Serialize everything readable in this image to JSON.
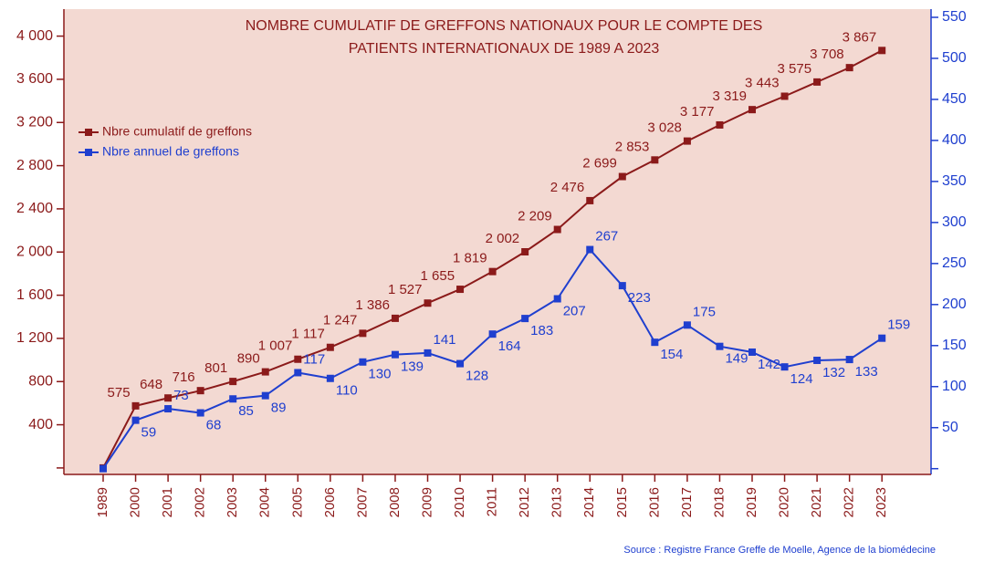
{
  "chart_data": {
    "type": "line",
    "title": [
      "NOMBRE CUMULATIF DE GREFFONS NATIONAUX POUR LE COMPTE DES",
      "PATIENTS INTERNATIONAUX DE 1989 A 2023"
    ],
    "source": "Source : Registre France Greffe de Moelle, Agence de la biomédecine",
    "categories": [
      "1989",
      "2000",
      "2001",
      "2002",
      "2003",
      "2004",
      "2005",
      "2006",
      "2007",
      "2008",
      "2009",
      "2010",
      "2011",
      "2012",
      "2013",
      "2014",
      "2015",
      "2016",
      "2017",
      "2018",
      "2019",
      "2020",
      "2021",
      "2022",
      "2023"
    ],
    "series": [
      {
        "name": "Nbre cumulatif de greffons",
        "color": "#8b1a1a",
        "axis": "y",
        "values": [
          0,
          575,
          648,
          716,
          801,
          890,
          1007,
          1117,
          1247,
          1386,
          1527,
          1655,
          1819,
          2002,
          2209,
          2476,
          2699,
          2853,
          3028,
          3177,
          3319,
          3443,
          3575,
          3708,
          3867
        ],
        "value_labels": [
          null,
          "575",
          "648",
          "716",
          "801",
          "890",
          "1 007",
          "1 117",
          "1 247",
          "1 386",
          "1 527",
          "1 655",
          "1 819",
          "2 002",
          "2 209",
          "2 476",
          "2 699",
          "2 853",
          "3 028",
          "3 177",
          "3 319",
          "3 443",
          "3 575",
          "3 708",
          "3 867"
        ]
      },
      {
        "name": "Nbre annuel de greffons",
        "color": "#1f3fcf",
        "axis": "y2",
        "values": [
          0,
          59,
          73,
          68,
          85,
          89,
          117,
          110,
          130,
          139,
          141,
          128,
          164,
          183,
          207,
          267,
          223,
          154,
          175,
          149,
          142,
          124,
          132,
          133,
          159
        ],
        "value_labels": [
          null,
          "59",
          "73",
          "68",
          "85",
          "89",
          "117",
          "110",
          "130",
          "139",
          "141",
          "128",
          "164",
          "183",
          "207",
          "267",
          "223",
          "154",
          "175",
          "149",
          "142",
          "124",
          "132",
          "133",
          "159"
        ]
      }
    ],
    "ylim": [
      -60,
      4250
    ],
    "yticks": [
      {
        "value": 0,
        "label": null
      },
      400,
      800,
      {
        "value": 1200,
        "label": "1 200"
      },
      {
        "value": 1600,
        "label": "1 600"
      },
      {
        "value": 2000,
        "label": "2 000"
      },
      {
        "value": 2400,
        "label": "2 400"
      },
      {
        "value": 2800,
        "label": "2 800"
      },
      {
        "value": 3200,
        "label": "3 200"
      },
      {
        "value": 3600,
        "label": "3 600"
      },
      {
        "value": 4000,
        "label": "4 000"
      }
    ],
    "y2lim": [
      -7,
      560
    ],
    "y2ticks": [
      {
        "value": 0,
        "label": null
      },
      50,
      100,
      150,
      200,
      250,
      300,
      350,
      400,
      450,
      500,
      550
    ],
    "legend": "upper left",
    "grid": false
  }
}
